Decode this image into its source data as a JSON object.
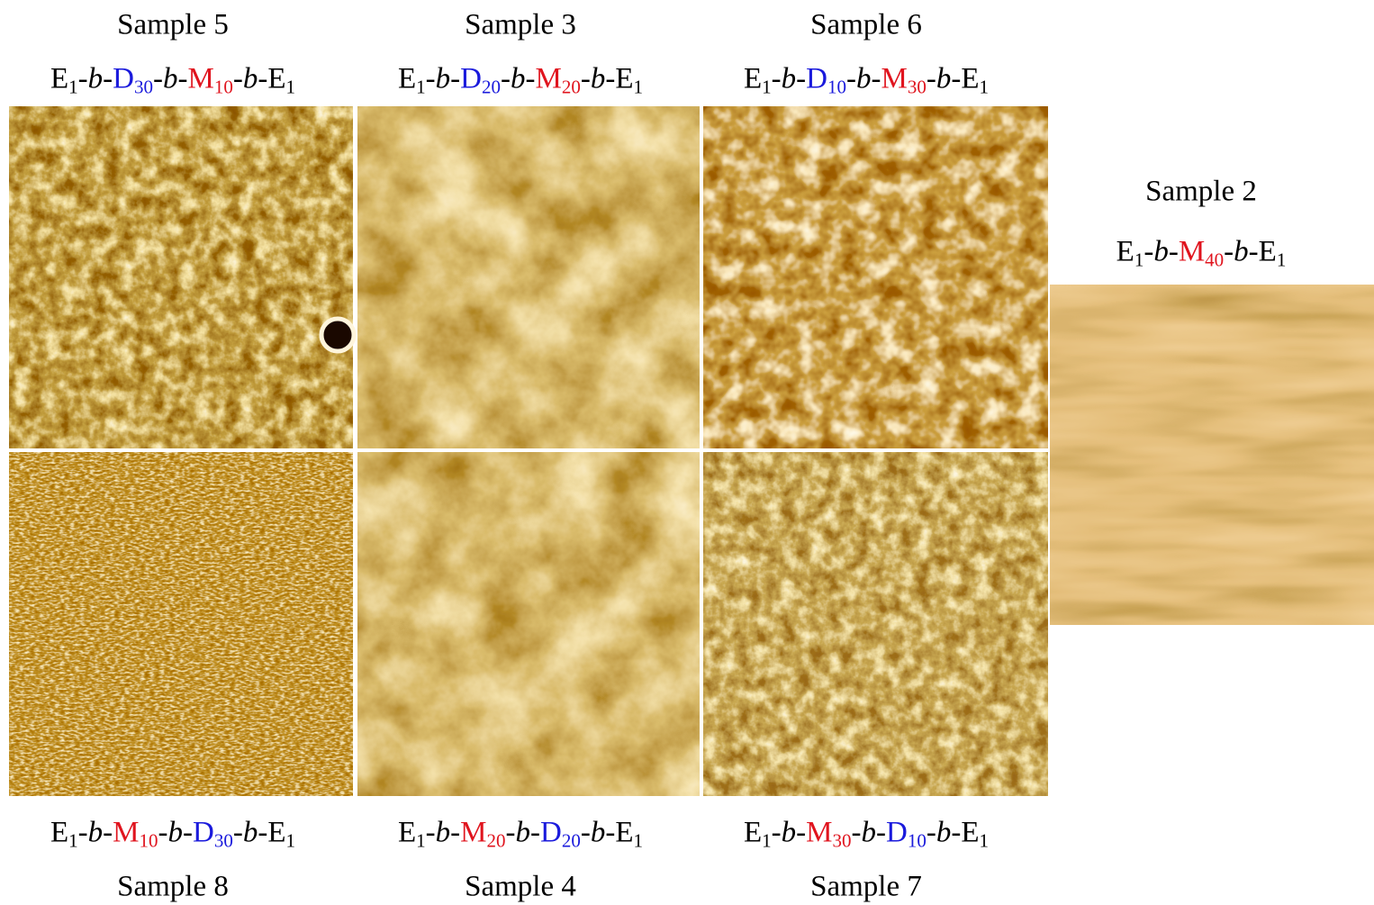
{
  "panels": [
    {
      "sample": "Sample 5",
      "formula": [
        {
          "text": "E",
          "sub": "1"
        },
        {
          "text": "-"
        },
        {
          "text": "b",
          "italic": true
        },
        {
          "text": "-"
        },
        {
          "text": "D",
          "sub": "30",
          "color": "#1a1adc"
        },
        {
          "text": "-"
        },
        {
          "text": "b",
          "italic": true
        },
        {
          "text": "-"
        },
        {
          "text": "M",
          "sub": "10",
          "color": "#e0141e"
        },
        {
          "text": "-"
        },
        {
          "text": "b",
          "italic": true
        },
        {
          "text": "-"
        },
        {
          "text": "E",
          "sub": "1"
        }
      ]
    },
    {
      "sample": "Sample 3",
      "formula": [
        {
          "text": "E",
          "sub": "1"
        },
        {
          "text": "-"
        },
        {
          "text": "b",
          "italic": true
        },
        {
          "text": "-"
        },
        {
          "text": "D",
          "sub": "20",
          "color": "#1a1adc"
        },
        {
          "text": "-"
        },
        {
          "text": "b",
          "italic": true
        },
        {
          "text": "-"
        },
        {
          "text": "M",
          "sub": "20",
          "color": "#e0141e"
        },
        {
          "text": "-"
        },
        {
          "text": "b",
          "italic": true
        },
        {
          "text": "-"
        },
        {
          "text": "E",
          "sub": "1"
        }
      ]
    },
    {
      "sample": "Sample 6",
      "formula": [
        {
          "text": "E",
          "sub": "1"
        },
        {
          "text": "-"
        },
        {
          "text": "b",
          "italic": true
        },
        {
          "text": "-"
        },
        {
          "text": "D",
          "sub": "10",
          "color": "#1a1adc"
        },
        {
          "text": "-"
        },
        {
          "text": "b",
          "italic": true
        },
        {
          "text": "-"
        },
        {
          "text": "M",
          "sub": "30",
          "color": "#e0141e"
        },
        {
          "text": "-"
        },
        {
          "text": "b",
          "italic": true
        },
        {
          "text": "-"
        },
        {
          "text": "E",
          "sub": "1"
        }
      ]
    },
    {
      "sample": "Sample 8",
      "formula": [
        {
          "text": "E",
          "sub": "1"
        },
        {
          "text": "-"
        },
        {
          "text": "b",
          "italic": true
        },
        {
          "text": "-"
        },
        {
          "text": "M",
          "sub": "10",
          "color": "#e0141e"
        },
        {
          "text": "-"
        },
        {
          "text": "b",
          "italic": true
        },
        {
          "text": "-"
        },
        {
          "text": "D",
          "sub": "30",
          "color": "#1a1adc"
        },
        {
          "text": "-"
        },
        {
          "text": "b",
          "italic": true
        },
        {
          "text": "-"
        },
        {
          "text": "E",
          "sub": "1"
        }
      ]
    },
    {
      "sample": "Sample 4",
      "formula": [
        {
          "text": "E",
          "sub": "1"
        },
        {
          "text": "-"
        },
        {
          "text": "b",
          "italic": true
        },
        {
          "text": "-"
        },
        {
          "text": "M",
          "sub": "20",
          "color": "#e0141e"
        },
        {
          "text": "-"
        },
        {
          "text": "b",
          "italic": true
        },
        {
          "text": "-"
        },
        {
          "text": "D",
          "sub": "20",
          "color": "#1a1adc"
        },
        {
          "text": "-"
        },
        {
          "text": "b",
          "italic": true
        },
        {
          "text": "-"
        },
        {
          "text": "E",
          "sub": "1"
        }
      ]
    },
    {
      "sample": "Sample 7",
      "formula": [
        {
          "text": "E",
          "sub": "1"
        },
        {
          "text": "-"
        },
        {
          "text": "b",
          "italic": true
        },
        {
          "text": "-"
        },
        {
          "text": "M",
          "sub": "30",
          "color": "#e0141e"
        },
        {
          "text": "-"
        },
        {
          "text": "b",
          "italic": true
        },
        {
          "text": "-"
        },
        {
          "text": "D",
          "sub": "10",
          "color": "#1a1adc"
        },
        {
          "text": "-"
        },
        {
          "text": "b",
          "italic": true
        },
        {
          "text": "-"
        },
        {
          "text": "E",
          "sub": "1"
        }
      ]
    },
    {
      "sample": "Sample 2",
      "formula": [
        {
          "text": "E",
          "sub": "1"
        },
        {
          "text": "-"
        },
        {
          "text": "b",
          "italic": true
        },
        {
          "text": "-"
        },
        {
          "text": "M",
          "sub": "40",
          "color": "#e0141e"
        },
        {
          "text": "-"
        },
        {
          "text": "b",
          "italic": true
        },
        {
          "text": "-"
        },
        {
          "text": "E",
          "sub": "1"
        }
      ]
    }
  ]
}
